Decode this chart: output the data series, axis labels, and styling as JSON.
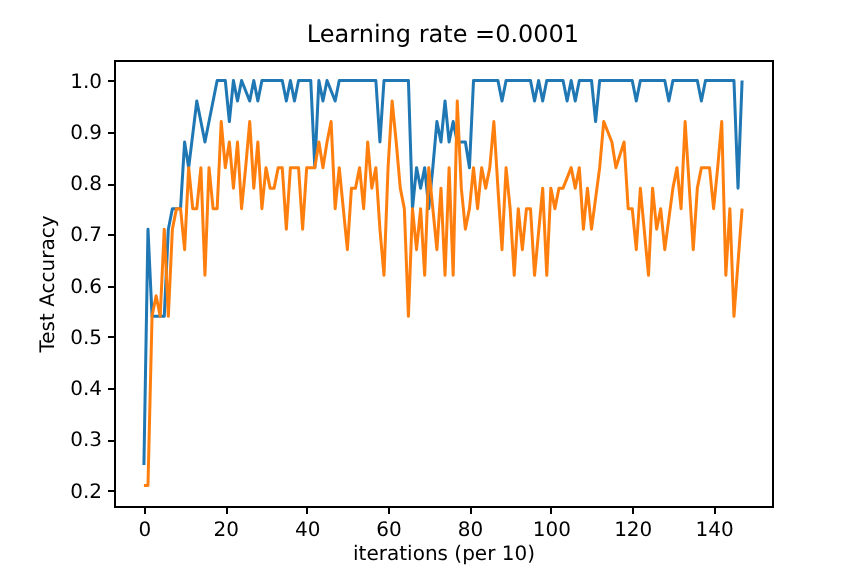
{
  "chart_data": {
    "type": "line",
    "title": "Learning rate =0.0001",
    "xlabel": "iterations (per 10)",
    "ylabel": "Test Accuracy",
    "xlim": [
      -7.35,
      154.35
    ],
    "xticks": [
      0,
      20,
      40,
      60,
      80,
      100,
      120,
      140
    ],
    "ylim": [
      0.17,
      1.04
    ],
    "yticks": [
      0.2,
      0.3,
      0.4,
      0.5,
      0.6,
      0.7,
      0.8,
      0.9,
      {
        "value": 1.0,
        "label": "1.0"
      }
    ],
    "grid": false,
    "legend": false,
    "series": [
      {
        "color": "#1f77b4",
        "x": [
          0,
          1,
          2,
          5,
          6,
          7,
          9,
          10,
          11,
          13,
          15,
          18,
          20,
          21,
          22,
          23,
          24,
          26,
          27,
          28,
          29,
          34,
          35,
          36,
          37,
          38,
          41,
          42,
          43,
          44,
          45,
          47,
          48,
          57,
          58,
          59,
          65,
          66,
          67,
          68,
          69,
          70,
          71,
          72,
          73,
          74,
          75,
          76,
          77,
          79,
          80,
          81,
          87,
          88,
          89,
          95,
          96,
          97,
          98,
          99,
          103,
          104,
          105,
          106,
          107,
          110,
          111,
          112,
          120,
          121,
          122,
          128,
          129,
          130,
          136,
          137,
          138,
          145,
          146,
          147
        ],
        "values": [
          0.25,
          0.71,
          0.54,
          0.54,
          0.71,
          0.75,
          0.75,
          0.88,
          0.83,
          0.96,
          0.88,
          1.0,
          1.0,
          0.92,
          1.0,
          0.96,
          1.0,
          0.96,
          1.0,
          0.96,
          1.0,
          1.0,
          0.96,
          1.0,
          0.96,
          1.0,
          1.0,
          0.83,
          1.0,
          0.96,
          1.0,
          0.96,
          1.0,
          1.0,
          0.88,
          1.0,
          1.0,
          0.75,
          0.83,
          0.79,
          0.83,
          0.75,
          0.83,
          0.92,
          0.88,
          0.96,
          0.88,
          0.92,
          0.88,
          0.88,
          0.83,
          1.0,
          1.0,
          0.96,
          1.0,
          1.0,
          0.96,
          1.0,
          0.96,
          1.0,
          1.0,
          0.96,
          1.0,
          0.96,
          1.0,
          1.0,
          0.92,
          1.0,
          1.0,
          0.96,
          1.0,
          1.0,
          0.96,
          1.0,
          1.0,
          0.96,
          1.0,
          1.0,
          0.79,
          1.0
        ]
      },
      {
        "color": "#ff7f0e",
        "x": [
          0,
          1,
          2,
          3,
          4,
          5,
          6,
          7,
          8,
          9,
          10,
          11,
          12,
          13,
          14,
          15,
          16,
          17,
          18,
          19,
          20,
          21,
          22,
          23,
          24,
          25,
          26,
          27,
          28,
          29,
          30,
          31,
          32,
          33,
          34,
          35,
          36,
          37,
          38,
          39,
          40,
          41,
          42,
          43,
          44,
          45,
          46,
          47,
          48,
          50,
          51,
          52,
          53,
          54,
          55,
          56,
          57,
          58,
          59,
          60,
          61,
          62,
          63,
          64,
          65,
          66,
          67,
          68,
          69,
          70,
          71,
          72,
          73,
          74,
          75,
          76,
          77,
          78,
          79,
          80,
          81,
          82,
          83,
          84,
          85,
          86,
          87,
          88,
          89,
          90,
          91,
          92,
          93,
          94,
          95,
          96,
          98,
          99,
          100,
          101,
          102,
          103,
          105,
          106,
          107,
          108,
          109,
          110,
          112,
          113,
          115,
          116,
          118,
          119,
          120,
          121,
          122,
          124,
          125,
          126,
          127,
          128,
          130,
          131,
          132,
          133,
          135,
          136,
          137,
          138,
          139,
          140,
          141,
          142,
          143,
          144,
          145,
          147
        ],
        "values": [
          0.21,
          0.21,
          0.54,
          0.58,
          0.54,
          0.71,
          0.54,
          0.71,
          0.75,
          0.75,
          0.67,
          0.83,
          0.75,
          0.75,
          0.83,
          0.62,
          0.83,
          0.75,
          0.75,
          0.92,
          0.83,
          0.88,
          0.79,
          0.88,
          0.75,
          0.83,
          0.92,
          0.79,
          0.88,
          0.75,
          0.83,
          0.79,
          0.79,
          0.83,
          0.83,
          0.71,
          0.83,
          0.83,
          0.83,
          0.71,
          0.83,
          0.83,
          0.83,
          0.88,
          0.83,
          0.88,
          0.92,
          0.75,
          0.83,
          0.67,
          0.79,
          0.79,
          0.83,
          0.75,
          0.88,
          0.79,
          0.83,
          0.71,
          0.62,
          0.83,
          0.96,
          0.88,
          0.79,
          0.75,
          0.54,
          0.75,
          0.67,
          0.75,
          0.62,
          0.83,
          0.75,
          0.67,
          0.79,
          0.62,
          0.83,
          0.62,
          0.96,
          0.79,
          0.71,
          0.75,
          0.83,
          0.75,
          0.83,
          0.79,
          0.83,
          0.92,
          0.79,
          0.67,
          0.83,
          0.75,
          0.62,
          0.75,
          0.67,
          0.75,
          0.75,
          0.62,
          0.79,
          0.62,
          0.79,
          0.75,
          0.79,
          0.79,
          0.83,
          0.79,
          0.83,
          0.71,
          0.79,
          0.71,
          0.83,
          0.92,
          0.88,
          0.83,
          0.88,
          0.75,
          0.75,
          0.67,
          0.79,
          0.62,
          0.79,
          0.71,
          0.75,
          0.67,
          0.79,
          0.83,
          0.75,
          0.92,
          0.67,
          0.79,
          0.83,
          0.83,
          0.83,
          0.75,
          0.83,
          0.92,
          0.62,
          0.75,
          0.54,
          0.75
        ]
      }
    ]
  }
}
